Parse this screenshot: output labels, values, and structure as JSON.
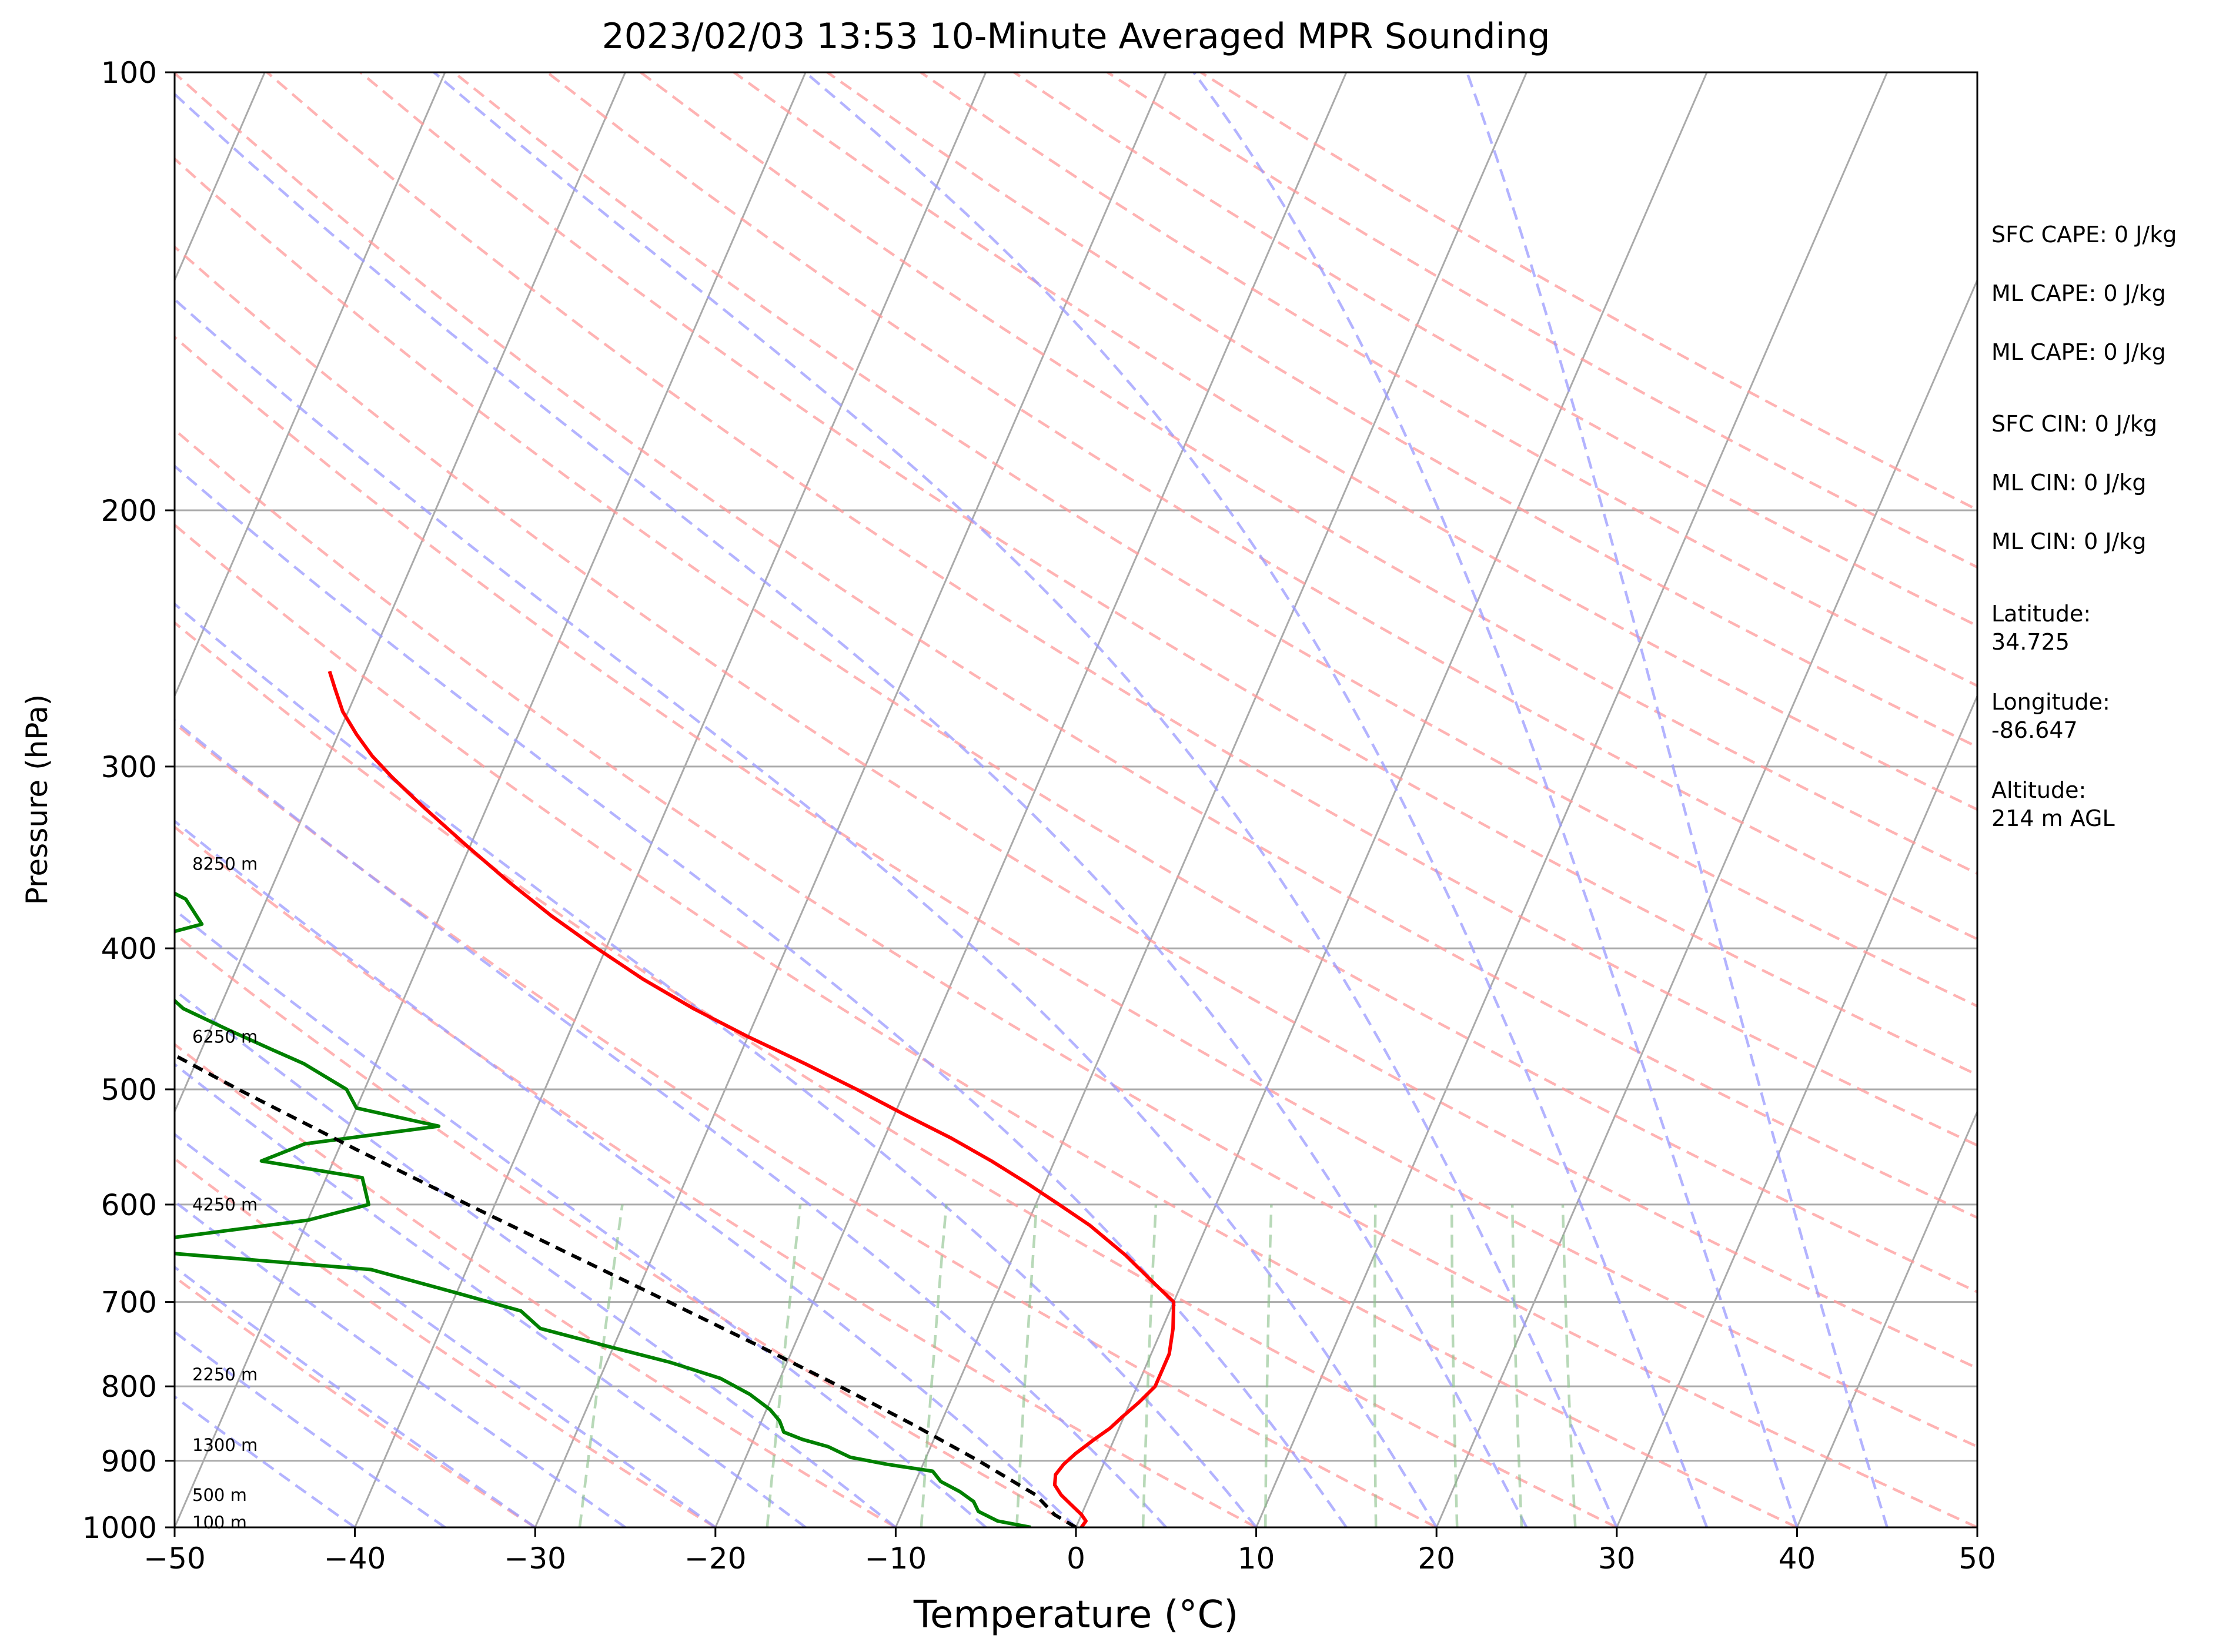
{
  "chart_data": {
    "type": "line",
    "subtype": "skew-T log-P sounding",
    "title": "2023/02/03 13:53 10-Minute Averaged MPR Sounding",
    "xlabel": "Temperature (°C)",
    "ylabel": "Pressure (hPa)",
    "xlim": [
      -50,
      50
    ],
    "ylim": [
      1000,
      100
    ],
    "y_scale": "log",
    "x_ticks": [
      "−50",
      "−40",
      "−30",
      "−20",
      "−10",
      "0",
      "10",
      "20",
      "30",
      "40",
      "50"
    ],
    "y_ticks": [
      "100",
      "200",
      "300",
      "400",
      "500",
      "600",
      "700",
      "800",
      "900",
      "1000"
    ],
    "grid": true,
    "height_labels": [
      {
        "p": 350,
        "label": "8250 m"
      },
      {
        "p": 460,
        "label": "6250 m"
      },
      {
        "p": 600,
        "label": "4250 m"
      },
      {
        "p": 785,
        "label": "2250 m"
      },
      {
        "p": 878,
        "label": "1300 m"
      },
      {
        "p": 950,
        "label": "500 m"
      },
      {
        "p": 992,
        "label": "100 m"
      }
    ],
    "series": [
      {
        "role": "temperature",
        "color": "#ff0000",
        "points": [
          [
            1000,
            0.3
          ],
          [
            990,
            0.4
          ],
          [
            980,
            0.0
          ],
          [
            965,
            -0.8
          ],
          [
            950,
            -1.6
          ],
          [
            935,
            -2.2
          ],
          [
            920,
            -2.4
          ],
          [
            905,
            -2.2
          ],
          [
            890,
            -1.8
          ],
          [
            870,
            -1.1
          ],
          [
            855,
            -0.5
          ],
          [
            840,
            -0.1
          ],
          [
            820,
            0.5
          ],
          [
            800,
            1.0
          ],
          [
            780,
            1.0
          ],
          [
            760,
            1.0
          ],
          [
            730,
            0.6
          ],
          [
            700,
            0.0
          ],
          [
            680,
            -1.5
          ],
          [
            650,
            -3.8
          ],
          [
            620,
            -6.5
          ],
          [
            600,
            -8.7
          ],
          [
            580,
            -11.0
          ],
          [
            560,
            -13.5
          ],
          [
            540,
            -16.3
          ],
          [
            520,
            -19.5
          ],
          [
            500,
            -22.7
          ],
          [
            480,
            -26.2
          ],
          [
            460,
            -30.0
          ],
          [
            440,
            -33.7
          ],
          [
            420,
            -37.2
          ],
          [
            400,
            -40.5
          ],
          [
            380,
            -43.8
          ],
          [
            360,
            -47.0
          ],
          [
            340,
            -50.2
          ],
          [
            320,
            -53.5
          ],
          [
            305,
            -56.0
          ],
          [
            295,
            -57.6
          ],
          [
            285,
            -59.0
          ],
          [
            275,
            -60.3
          ],
          [
            265,
            -61.3
          ],
          [
            258,
            -62.0
          ]
        ]
      },
      {
        "role": "dewpoint",
        "color": "#008000",
        "points": [
          [
            1000,
            -2.5
          ],
          [
            990,
            -4.5
          ],
          [
            975,
            -5.8
          ],
          [
            960,
            -6.3
          ],
          [
            945,
            -7.3
          ],
          [
            930,
            -8.6
          ],
          [
            915,
            -9.3
          ],
          [
            905,
            -12.0
          ],
          [
            895,
            -14.2
          ],
          [
            880,
            -15.7
          ],
          [
            870,
            -17.3
          ],
          [
            860,
            -18.5
          ],
          [
            845,
            -19.0
          ],
          [
            830,
            -19.8
          ],
          [
            810,
            -21.3
          ],
          [
            790,
            -23.3
          ],
          [
            770,
            -26.5
          ],
          [
            750,
            -30.5
          ],
          [
            730,
            -34.5
          ],
          [
            710,
            -36.0
          ],
          [
            690,
            -40.0
          ],
          [
            665,
            -45.3
          ],
          [
            642,
            -61.0
          ],
          [
            615,
            -50.0
          ],
          [
            600,
            -47.0
          ],
          [
            575,
            -48.0
          ],
          [
            560,
            -54.0
          ],
          [
            545,
            -52.0
          ],
          [
            530,
            -45.0
          ],
          [
            515,
            -50.0
          ],
          [
            500,
            -51.0
          ],
          [
            480,
            -54.0
          ],
          [
            470,
            -56.0
          ],
          [
            455,
            -59.0
          ],
          [
            440,
            -62.0
          ],
          [
            420,
            -64.5
          ],
          [
            410,
            -64.5
          ],
          [
            395,
            -66.0
          ],
          [
            385,
            -63.0
          ],
          [
            370,
            -64.5
          ],
          [
            355,
            -68.0
          ],
          [
            340,
            -71.0
          ],
          [
            330,
            -73.0
          ],
          [
            318,
            -71.5
          ],
          [
            300,
            -80.0
          ],
          [
            290,
            -80.5
          ],
          [
            283,
            -81.5
          ],
          [
            270,
            -81.0
          ],
          [
            265,
            -80.5
          ],
          [
            257,
            -72.0
          ]
        ]
      },
      {
        "role": "parcel",
        "color": "#000000",
        "points": [
          [
            1000,
            0.0
          ],
          [
            980,
            -1.5
          ],
          [
            950,
            -3.0
          ],
          [
            900,
            -7.0
          ],
          [
            850,
            -11.5
          ],
          [
            800,
            -16.5
          ],
          [
            750,
            -22.0
          ],
          [
            700,
            -28.0
          ],
          [
            650,
            -34.5
          ],
          [
            600,
            -41.5
          ],
          [
            550,
            -49.0
          ],
          [
            500,
            -57.0
          ],
          [
            450,
            -65.5
          ],
          [
            400,
            -74.5
          ],
          [
            350,
            -84.0
          ],
          [
            300,
            -94.0
          ]
        ]
      }
    ],
    "reference_lines": {
      "isotherms_color": "#aaaaaa",
      "dry_adiabats_color": "#ff9999",
      "moist_adiabats_color": "#9999ff",
      "mixing_ratio_color": "#88c088",
      "skew_factor": 35
    }
  },
  "stats": {
    "sfc_cape": "SFC CAPE: 0 J/kg",
    "ml_cape_1": "ML CAPE: 0 J/kg",
    "ml_cape_2": "ML CAPE: 0 J/kg",
    "sfc_cin": "SFC CIN: 0 J/kg",
    "ml_cin_1": "ML CIN: 0 J/kg",
    "ml_cin_2": "ML CIN: 0 J/kg",
    "latitude": "Latitude:\n34.725",
    "longitude": "Longitude:\n-86.647",
    "altitude": "Altitude:\n214 m AGL"
  }
}
